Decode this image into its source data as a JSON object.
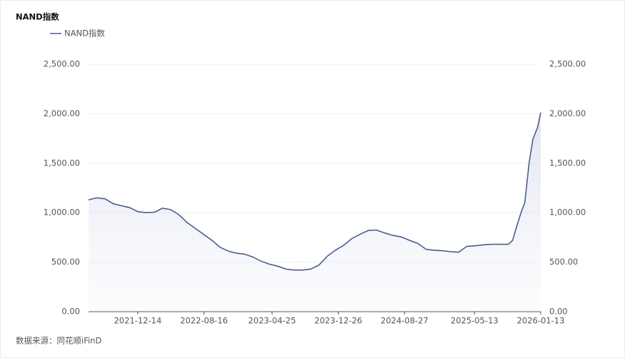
{
  "chart_data": {
    "type": "line",
    "title": "NAND指数",
    "source": "数据来源：同花顺iFinD",
    "x": [
      "2021-06-15",
      "2021-07-15",
      "2021-08-15",
      "2021-09-15",
      "2021-10-15",
      "2021-11-15",
      "2021-12-15",
      "2022-01-15",
      "2022-02-15",
      "2022-03-15",
      "2022-04-15",
      "2022-05-15",
      "2022-06-15",
      "2022-07-15",
      "2022-08-15",
      "2022-09-15",
      "2022-10-15",
      "2022-11-15",
      "2022-12-15",
      "2023-01-15",
      "2023-02-15",
      "2023-03-15",
      "2023-04-15",
      "2023-05-15",
      "2023-06-15",
      "2023-07-15",
      "2023-08-15",
      "2023-09-15",
      "2023-10-15",
      "2023-11-15",
      "2023-12-15",
      "2024-01-15",
      "2024-02-15",
      "2024-03-15",
      "2024-04-15",
      "2024-05-15",
      "2024-06-15",
      "2024-07-15",
      "2024-08-15",
      "2024-09-15",
      "2024-10-15",
      "2024-11-15",
      "2024-12-15",
      "2025-01-15",
      "2025-02-15",
      "2025-03-15",
      "2025-04-15",
      "2025-05-15",
      "2025-06-15",
      "2025-07-15",
      "2025-08-15",
      "2025-09-15",
      "2025-10-01",
      "2025-10-15",
      "2025-11-01",
      "2025-11-15",
      "2025-12-01",
      "2025-12-15",
      "2026-01-01",
      "2026-01-13"
    ],
    "series": [
      {
        "name": "NAND指数",
        "color": "#4a5c9e",
        "values": [
          1130,
          1150,
          1140,
          1090,
          1070,
          1050,
          1010,
          1000,
          1005,
          1045,
          1030,
          980,
          900,
          840,
          780,
          720,
          650,
          610,
          590,
          580,
          550,
          510,
          480,
          460,
          430,
          420,
          420,
          430,
          470,
          560,
          620,
          670,
          740,
          780,
          820,
          825,
          795,
          770,
          755,
          720,
          690,
          630,
          620,
          615,
          605,
          600,
          660,
          665,
          675,
          680,
          680,
          680,
          720,
          850,
          1000,
          1100,
          1500,
          1740,
          1860,
          2010
        ]
      }
    ],
    "xlim": [
      "2021-06-15",
      "2026-01-13"
    ],
    "xticks": [
      "2021-12-14",
      "2022-08-16",
      "2023-04-25",
      "2023-12-26",
      "2024-08-27",
      "2025-05-13",
      "2026-01-13"
    ],
    "ylim": [
      0,
      2500
    ],
    "yticks": [
      {
        "value": 0,
        "label": "0.00"
      },
      {
        "value": 500,
        "label": "500.00"
      },
      {
        "value": 1000,
        "label": "1,000.00"
      },
      {
        "value": 1500,
        "label": "1,500.00"
      },
      {
        "value": 2000,
        "label": "2,000.00"
      },
      {
        "value": 2500,
        "label": "2,500.00"
      }
    ],
    "y2lim": [
      0,
      2500
    ],
    "y2ticks": [
      {
        "value": 0,
        "label": "0.00"
      },
      {
        "value": 500,
        "label": "500.00"
      },
      {
        "value": 1000,
        "label": "1,000.00"
      },
      {
        "value": 1500,
        "label": "1,500.00"
      },
      {
        "value": 2000,
        "label": "2,000.00"
      },
      {
        "value": 2500,
        "label": "2,500.00"
      }
    ],
    "grid": true
  }
}
